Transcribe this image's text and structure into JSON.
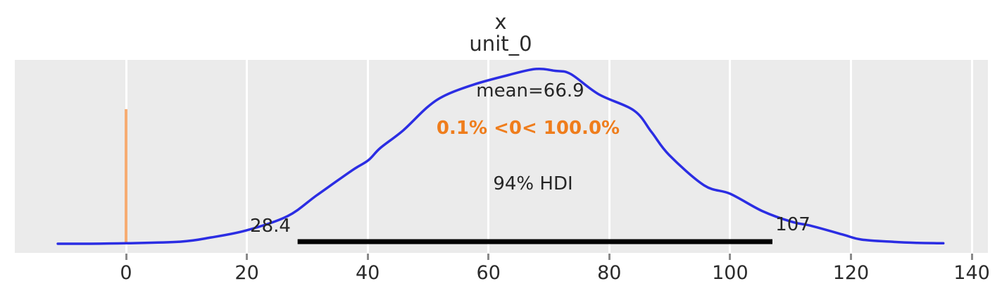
{
  "figure": {
    "title": "x",
    "subtitle": "unit_0"
  },
  "chart_data": {
    "type": "kde",
    "title": "x",
    "subtitle": "unit_0",
    "xlabel": "",
    "ylabel": "",
    "xlim": [
      -18.4,
      142.7
    ],
    "grid": "vertical-white-on-gray",
    "x_ticks": [
      0,
      20,
      40,
      60,
      80,
      100,
      120,
      140
    ],
    "mean": 66.9,
    "mean_label": "mean=66.9",
    "ref_val": 0,
    "ref_val_label": "0.1% <0< 100.0%",
    "hdi": {
      "prob_label": "94% HDI",
      "lower": 28.4,
      "upper": 107,
      "lower_label": "28.4",
      "upper_label": "107"
    },
    "curve": {
      "note": "normalized density (0-1) vs x",
      "points": [
        [
          -11.3,
          0.004
        ],
        [
          -6.0,
          0.004
        ],
        [
          0.0,
          0.007
        ],
        [
          9.1,
          0.016
        ],
        [
          14.1,
          0.04
        ],
        [
          19.9,
          0.08
        ],
        [
          26.7,
          0.161
        ],
        [
          31.6,
          0.281
        ],
        [
          37.4,
          0.422
        ],
        [
          40.1,
          0.48
        ],
        [
          42.1,
          0.55
        ],
        [
          45.9,
          0.651
        ],
        [
          49.9,
          0.783
        ],
        [
          52.9,
          0.851
        ],
        [
          57.6,
          0.912
        ],
        [
          63.1,
          0.964
        ],
        [
          67.7,
          1.0
        ],
        [
          71.0,
          0.99
        ],
        [
          73.6,
          0.972
        ],
        [
          78.2,
          0.857
        ],
        [
          84.1,
          0.763
        ],
        [
          87.0,
          0.64
        ],
        [
          89.9,
          0.51
        ],
        [
          95.7,
          0.337
        ],
        [
          100.0,
          0.289
        ],
        [
          105.4,
          0.189
        ],
        [
          110.3,
          0.128
        ],
        [
          113.2,
          0.108
        ],
        [
          118.7,
          0.056
        ],
        [
          121.7,
          0.028
        ],
        [
          127.0,
          0.015
        ],
        [
          131.0,
          0.009
        ],
        [
          135.3,
          0.007
        ]
      ]
    },
    "colors": {
      "curve": "#2b2de3",
      "ref_line": "#f6ac72",
      "ref_text": "#ef7d1c",
      "hdi_bar": "#000000",
      "plot_bg": "#ebebeb",
      "gridline": "#ffffff",
      "text": "#262626",
      "tick_mark": "#8a8a8a"
    }
  }
}
